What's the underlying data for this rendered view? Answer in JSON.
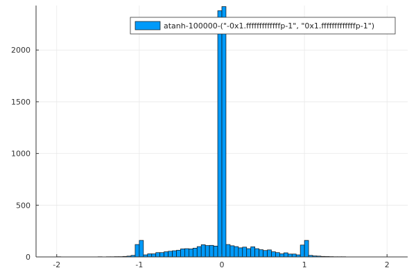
{
  "chart_data": {
    "type": "bar",
    "title": "",
    "xlabel": "",
    "ylabel": "",
    "xlim": [
      -2.25,
      2.25
    ],
    "ylim": [
      0,
      2430
    ],
    "xticks": [
      -2,
      -1,
      0,
      1,
      2
    ],
    "yticks": [
      0,
      500,
      1000,
      1500,
      2000
    ],
    "grid": true,
    "legend_position": "top-right",
    "bin_width": 0.05,
    "series": [
      {
        "name": "atanh-100000-(\"-0x1.fffffffffffffp-1\", \"0x1.fffffffffffffp-1\")",
        "color": "#009af9",
        "bins": [
          {
            "x0": -2.0,
            "x1": -1.95,
            "count": 2
          },
          {
            "x0": -1.95,
            "x1": -1.9,
            "count": 1
          },
          {
            "x0": -1.9,
            "x1": -1.85,
            "count": 1
          },
          {
            "x0": -1.85,
            "x1": -1.8,
            "count": 1
          },
          {
            "x0": -1.8,
            "x1": -1.75,
            "count": 1
          },
          {
            "x0": -1.75,
            "x1": -1.7,
            "count": 1
          },
          {
            "x0": -1.7,
            "x1": -1.65,
            "count": 1
          },
          {
            "x0": -1.65,
            "x1": -1.6,
            "count": 1
          },
          {
            "x0": -1.6,
            "x1": -1.55,
            "count": 1
          },
          {
            "x0": -1.55,
            "x1": -1.5,
            "count": 1
          },
          {
            "x0": -1.5,
            "x1": -1.45,
            "count": 2
          },
          {
            "x0": -1.45,
            "x1": -1.4,
            "count": 1
          },
          {
            "x0": -1.4,
            "x1": -1.35,
            "count": 2
          },
          {
            "x0": -1.35,
            "x1": -1.3,
            "count": 2
          },
          {
            "x0": -1.3,
            "x1": -1.25,
            "count": 3
          },
          {
            "x0": -1.25,
            "x1": -1.2,
            "count": 3
          },
          {
            "x0": -1.2,
            "x1": -1.15,
            "count": 5
          },
          {
            "x0": -1.15,
            "x1": -1.1,
            "count": 8
          },
          {
            "x0": -1.1,
            "x1": -1.05,
            "count": 15
          },
          {
            "x0": -1.05,
            "x1": -1.0,
            "count": 120
          },
          {
            "x0": -1.0,
            "x1": -0.95,
            "count": 160
          },
          {
            "x0": -0.95,
            "x1": -0.9,
            "count": 20
          },
          {
            "x0": -0.9,
            "x1": -0.85,
            "count": 30
          },
          {
            "x0": -0.85,
            "x1": -0.8,
            "count": 30
          },
          {
            "x0": -0.8,
            "x1": -0.75,
            "count": 42
          },
          {
            "x0": -0.75,
            "x1": -0.7,
            "count": 42
          },
          {
            "x0": -0.7,
            "x1": -0.65,
            "count": 50
          },
          {
            "x0": -0.65,
            "x1": -0.6,
            "count": 55
          },
          {
            "x0": -0.6,
            "x1": -0.55,
            "count": 60
          },
          {
            "x0": -0.55,
            "x1": -0.5,
            "count": 65
          },
          {
            "x0": -0.5,
            "x1": -0.45,
            "count": 78
          },
          {
            "x0": -0.45,
            "x1": -0.4,
            "count": 80
          },
          {
            "x0": -0.4,
            "x1": -0.35,
            "count": 78
          },
          {
            "x0": -0.35,
            "x1": -0.3,
            "count": 85
          },
          {
            "x0": -0.3,
            "x1": -0.25,
            "count": 100
          },
          {
            "x0": -0.25,
            "x1": -0.2,
            "count": 118
          },
          {
            "x0": -0.2,
            "x1": -0.15,
            "count": 110
          },
          {
            "x0": -0.15,
            "x1": -0.1,
            "count": 112
          },
          {
            "x0": -0.1,
            "x1": -0.05,
            "count": 105
          },
          {
            "x0": -0.05,
            "x1": 0.0,
            "count": 2380
          },
          {
            "x0": 0.0,
            "x1": 0.05,
            "count": 2420
          },
          {
            "x0": 0.05,
            "x1": 0.1,
            "count": 120
          },
          {
            "x0": 0.1,
            "x1": 0.15,
            "count": 108
          },
          {
            "x0": 0.15,
            "x1": 0.2,
            "count": 100
          },
          {
            "x0": 0.2,
            "x1": 0.25,
            "count": 88
          },
          {
            "x0": 0.25,
            "x1": 0.3,
            "count": 95
          },
          {
            "x0": 0.3,
            "x1": 0.35,
            "count": 80
          },
          {
            "x0": 0.35,
            "x1": 0.4,
            "count": 98
          },
          {
            "x0": 0.4,
            "x1": 0.45,
            "count": 80
          },
          {
            "x0": 0.45,
            "x1": 0.5,
            "count": 70
          },
          {
            "x0": 0.5,
            "x1": 0.55,
            "count": 62
          },
          {
            "x0": 0.55,
            "x1": 0.6,
            "count": 68
          },
          {
            "x0": 0.6,
            "x1": 0.65,
            "count": 50
          },
          {
            "x0": 0.65,
            "x1": 0.7,
            "count": 42
          },
          {
            "x0": 0.7,
            "x1": 0.75,
            "count": 30
          },
          {
            "x0": 0.75,
            "x1": 0.8,
            "count": 40
          },
          {
            "x0": 0.8,
            "x1": 0.85,
            "count": 28
          },
          {
            "x0": 0.85,
            "x1": 0.9,
            "count": 28
          },
          {
            "x0": 0.9,
            "x1": 0.95,
            "count": 20
          },
          {
            "x0": 0.95,
            "x1": 1.0,
            "count": 115
          },
          {
            "x0": 1.0,
            "x1": 1.05,
            "count": 160
          },
          {
            "x0": 1.05,
            "x1": 1.1,
            "count": 15
          },
          {
            "x0": 1.1,
            "x1": 1.15,
            "count": 10
          },
          {
            "x0": 1.15,
            "x1": 1.2,
            "count": 8
          },
          {
            "x0": 1.2,
            "x1": 1.25,
            "count": 5
          },
          {
            "x0": 1.25,
            "x1": 1.3,
            "count": 4
          },
          {
            "x0": 1.3,
            "x1": 1.35,
            "count": 3
          },
          {
            "x0": 1.35,
            "x1": 1.4,
            "count": 2
          },
          {
            "x0": 1.4,
            "x1": 1.45,
            "count": 2
          },
          {
            "x0": 1.45,
            "x1": 1.5,
            "count": 2
          },
          {
            "x0": 1.5,
            "x1": 1.55,
            "count": 1
          },
          {
            "x0": 1.55,
            "x1": 1.6,
            "count": 1
          },
          {
            "x0": 1.6,
            "x1": 1.65,
            "count": 1
          },
          {
            "x0": 1.65,
            "x1": 1.7,
            "count": 1
          },
          {
            "x0": 1.7,
            "x1": 1.75,
            "count": 1
          },
          {
            "x0": 1.75,
            "x1": 1.8,
            "count": 1
          },
          {
            "x0": 1.8,
            "x1": 1.85,
            "count": 1
          },
          {
            "x0": 1.85,
            "x1": 1.9,
            "count": 1
          },
          {
            "x0": 1.9,
            "x1": 1.95,
            "count": 1
          },
          {
            "x0": 1.95,
            "x1": 2.0,
            "count": 1
          }
        ]
      }
    ]
  }
}
